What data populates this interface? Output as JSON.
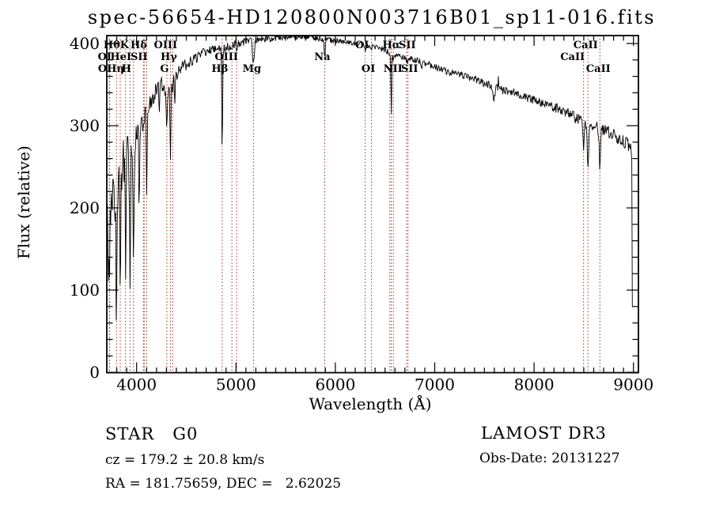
{
  "title": "spec-56654-HD120800N003716B01_sp11-016.fits",
  "axes": {
    "xlabel": "Wavelength (Å)",
    "ylabel": "Flux (relative)",
    "x_ticks": [
      4000,
      5000,
      6000,
      7000,
      8000,
      9000
    ],
    "x_minor_step": 100,
    "y_ticks": [
      0,
      100,
      200,
      300,
      400
    ],
    "y_minor_step": 20,
    "x_range": [
      3700,
      9050
    ],
    "y_range": [
      0,
      409
    ]
  },
  "annotations": {
    "class_label": "STAR   G0",
    "survey": "LAMOST DR3",
    "cz": "cz = 179.2 ± 20.8 km/s",
    "obs_date": "Obs-Date: 20131227",
    "ra_dec": "RA = 181.75659, DEC =   2.62025"
  },
  "colors": {
    "background": "#ffffff",
    "spectrum": "#000000",
    "line_marker": "#993322",
    "text": "#000000"
  },
  "chart_data": {
    "type": "line",
    "title": "spec-56654-HD120800N003716B01_sp11-016.fits",
    "xlabel": "Wavelength (Å)",
    "ylabel": "Flux (relative)",
    "xlim": [
      3700,
      9050
    ],
    "ylim": [
      0,
      409
    ],
    "grid": false,
    "continuum_points": [
      [
        3700,
        215
      ],
      [
        3720,
        185
      ],
      [
        3740,
        205
      ],
      [
        3770,
        230
      ],
      [
        3800,
        242
      ],
      [
        3830,
        243
      ],
      [
        3860,
        255
      ],
      [
        3890,
        262
      ],
      [
        3920,
        262
      ],
      [
        3950,
        268
      ],
      [
        3980,
        285
      ],
      [
        4010,
        302
      ],
      [
        4050,
        310
      ],
      [
        4090,
        318
      ],
      [
        4130,
        328
      ],
      [
        4170,
        338
      ],
      [
        4210,
        346
      ],
      [
        4250,
        350
      ],
      [
        4290,
        348
      ],
      [
        4330,
        352
      ],
      [
        4370,
        357
      ],
      [
        4420,
        366
      ],
      [
        4470,
        373
      ],
      [
        4520,
        376
      ],
      [
        4570,
        380
      ],
      [
        4620,
        384
      ],
      [
        4670,
        388
      ],
      [
        4720,
        391
      ],
      [
        4770,
        393
      ],
      [
        4820,
        394
      ],
      [
        4870,
        394
      ],
      [
        4920,
        396
      ],
      [
        4970,
        398
      ],
      [
        5020,
        400
      ],
      [
        5080,
        402
      ],
      [
        5140,
        404
      ],
      [
        5200,
        405
      ],
      [
        5300,
        406
      ],
      [
        5400,
        407
      ],
      [
        5500,
        408
      ],
      [
        5600,
        408
      ],
      [
        5700,
        408
      ],
      [
        5800,
        407
      ],
      [
        5900,
        404
      ],
      [
        6000,
        404
      ],
      [
        6100,
        402
      ],
      [
        6200,
        400
      ],
      [
        6300,
        398
      ],
      [
        6400,
        396
      ],
      [
        6500,
        392
      ],
      [
        6600,
        385
      ],
      [
        6700,
        383
      ],
      [
        6800,
        380
      ],
      [
        6900,
        376
      ],
      [
        7000,
        372
      ],
      [
        7100,
        367
      ],
      [
        7200,
        363
      ],
      [
        7300,
        361
      ],
      [
        7400,
        357
      ],
      [
        7500,
        352
      ],
      [
        7600,
        346
      ],
      [
        7700,
        343
      ],
      [
        7800,
        340
      ],
      [
        7900,
        336
      ],
      [
        8000,
        331
      ],
      [
        8100,
        326
      ],
      [
        8200,
        323
      ],
      [
        8300,
        318
      ],
      [
        8400,
        311
      ],
      [
        8500,
        303
      ],
      [
        8600,
        299
      ],
      [
        8700,
        295
      ],
      [
        8800,
        288
      ],
      [
        8900,
        281
      ],
      [
        8950,
        277
      ],
      [
        8975,
        273
      ],
      [
        8983,
        255
      ],
      [
        8990,
        40
      ]
    ],
    "marked_lines": [
      {
        "name": "OII",
        "wavelength": 3726.0,
        "depth": 95,
        "width": 5
      },
      {
        "name": "OII",
        "wavelength": 3728.8,
        "depth": 0,
        "width": 4
      },
      {
        "name": "Hθ",
        "wavelength": 3797.9,
        "depth": 125,
        "width": 5
      },
      {
        "name": "Hη",
        "wavelength": 3835.4,
        "depth": 175,
        "width": 5
      },
      {
        "name": "HeI",
        "wavelength": 3889.0,
        "depth": 125,
        "width": 5
      },
      {
        "name": "CaII K",
        "wavelength": 3933.7,
        "depth": 155,
        "width": 5
      },
      {
        "name": "CaII H",
        "wavelength": 3968.5,
        "depth": 145,
        "width": 6
      },
      {
        "name": "SII",
        "wavelength": 4068.6,
        "depth": 25,
        "width": 4
      },
      {
        "name": "SII",
        "wavelength": 4076.4,
        "depth": 0,
        "width": 4
      },
      {
        "name": "Hδ",
        "wavelength": 4101.7,
        "depth": 95,
        "width": 5
      },
      {
        "name": "G",
        "wavelength": 4304.4,
        "depth": 45,
        "width": 8
      },
      {
        "name": "Hγ",
        "wavelength": 4340.5,
        "depth": 97,
        "width": 4.5
      },
      {
        "name": "OIII",
        "wavelength": 4363.2,
        "depth": 15,
        "width": 4
      },
      {
        "name": "Hβ",
        "wavelength": 4861.3,
        "depth": 132,
        "width": 4
      },
      {
        "name": "OIII",
        "wavelength": 4958.9,
        "depth": 8,
        "width": 4
      },
      {
        "name": "OIII",
        "wavelength": 5006.8,
        "depth": 8,
        "width": 4
      },
      {
        "name": "Mg",
        "wavelength": 5175.3,
        "depth": 30,
        "width": 9
      },
      {
        "name": "Na",
        "wavelength": 5892.9,
        "depth": 22,
        "width": 6
      },
      {
        "name": "OI",
        "wavelength": 6300.3,
        "depth": 8,
        "width": 4
      },
      {
        "name": "OI",
        "wavelength": 6363.8,
        "depth": 6,
        "width": 4
      },
      {
        "name": "NII",
        "wavelength": 6548.0,
        "depth": 6,
        "width": 3
      },
      {
        "name": "Hα",
        "wavelength": 6562.8,
        "depth": 82,
        "width": 3.5
      },
      {
        "name": "NII",
        "wavelength": 6583.5,
        "depth": 6,
        "width": 3
      },
      {
        "name": "SII",
        "wavelength": 6716.7,
        "depth": 8,
        "width": 4
      },
      {
        "name": "SII",
        "wavelength": 6730.8,
        "depth": 6,
        "width": 4
      },
      {
        "name": "CaII",
        "wavelength": 8498.0,
        "depth": 38,
        "width": 6
      },
      {
        "name": "CaII",
        "wavelength": 8542.1,
        "depth": 50,
        "width": 7
      },
      {
        "name": "CaII",
        "wavelength": 8662.1,
        "depth": 46,
        "width": 7
      }
    ],
    "unmarked_features": [
      {
        "name": "HeI",
        "wavelength": 4026.0,
        "depth": 115,
        "width": 4
      },
      {
        "name": "CaI",
        "wavelength": 4227.0,
        "depth": 35,
        "width": 4
      },
      {
        "name": "FeI",
        "wavelength": 4383.0,
        "depth": 38,
        "width": 4
      },
      {
        "name": "B-band",
        "wavelength": 6869.0,
        "depth": 10,
        "width": 6
      },
      {
        "name": "A-band",
        "wavelength": 7594.0,
        "depth": 16,
        "width": 10
      },
      {
        "name": "sky-residual",
        "wavelength": 7642.0,
        "depth": -20,
        "width": 2.5
      }
    ],
    "line_labels": [
      {
        "text": "Hθ",
        "row": 1,
        "wavelength": 3797.9,
        "dx": -6
      },
      {
        "text": "K",
        "row": 1,
        "wavelength": 3933.7,
        "dx": -7
      },
      {
        "text": "Hδ",
        "row": 1,
        "wavelength": 4101.7,
        "dx": -10
      },
      {
        "text": "OIII",
        "row": 1,
        "wavelength": 4363.2,
        "dx": -9
      },
      {
        "text": "OI",
        "row": 1,
        "wavelength": 6300.3,
        "dx": -4
      },
      {
        "text": "Hα",
        "row": 1,
        "wavelength": 6562.8,
        "dx": 0
      },
      {
        "text": "SII",
        "row": 1,
        "wavelength": 6723.8,
        "dx": 0
      },
      {
        "text": "CaII",
        "row": 1,
        "wavelength": 8542.1,
        "dx": -3
      },
      {
        "text": "OI",
        "row": 2,
        "wavelength": 3726.0,
        "dx": -6
      },
      {
        "text": "HeI",
        "row": 2,
        "wavelength": 3889.0,
        "dx": -6
      },
      {
        "text": "SII",
        "row": 2,
        "wavelength": 4072.5,
        "dx": -6
      },
      {
        "text": "Hγ",
        "row": 2,
        "wavelength": 4340.5,
        "dx": -2
      },
      {
        "text": "OIII",
        "row": 2,
        "wavelength": 4983.0,
        "dx": -10
      },
      {
        "text": "Na",
        "row": 2,
        "wavelength": 5892.9,
        "dx": -3
      },
      {
        "text": "CaII",
        "row": 2,
        "wavelength": 8498.0,
        "dx": -14
      },
      {
        "text": "OI",
        "row": 3,
        "wavelength": 3728.8,
        "dx": -6
      },
      {
        "text": "Hη",
        "row": 3,
        "wavelength": 3835.4,
        "dx": -6
      },
      {
        "text": "H",
        "row": 3,
        "wavelength": 3968.5,
        "dx": -9
      },
      {
        "text": "G",
        "row": 3,
        "wavelength": 4304.4,
        "dx": -3
      },
      {
        "text": "Hβ",
        "row": 3,
        "wavelength": 4861.3,
        "dx": -3
      },
      {
        "text": "Mg",
        "row": 3,
        "wavelength": 5175.3,
        "dx": -2
      },
      {
        "text": "OI",
        "row": 3,
        "wavelength": 6363.8,
        "dx": -4
      },
      {
        "text": "NII",
        "row": 3,
        "wavelength": 6548.0,
        "dx": 4
      },
      {
        "text": "SII",
        "row": 3,
        "wavelength": 6730.8,
        "dx": 2
      },
      {
        "text": "CaII",
        "row": 3,
        "wavelength": 8662.1,
        "dx": -2
      }
    ],
    "noise_profile": [
      [
        3700,
        48
      ],
      [
        3780,
        38
      ],
      [
        3850,
        30
      ],
      [
        3950,
        26
      ],
      [
        4050,
        16
      ],
      [
        4200,
        11
      ],
      [
        4400,
        8
      ],
      [
        4700,
        6
      ],
      [
        5000,
        5
      ],
      [
        5400,
        4
      ],
      [
        5900,
        3.5
      ],
      [
        6500,
        3.5
      ],
      [
        7000,
        4
      ],
      [
        7600,
        5
      ],
      [
        8000,
        5.5
      ],
      [
        8500,
        7
      ],
      [
        8990,
        8
      ]
    ]
  }
}
